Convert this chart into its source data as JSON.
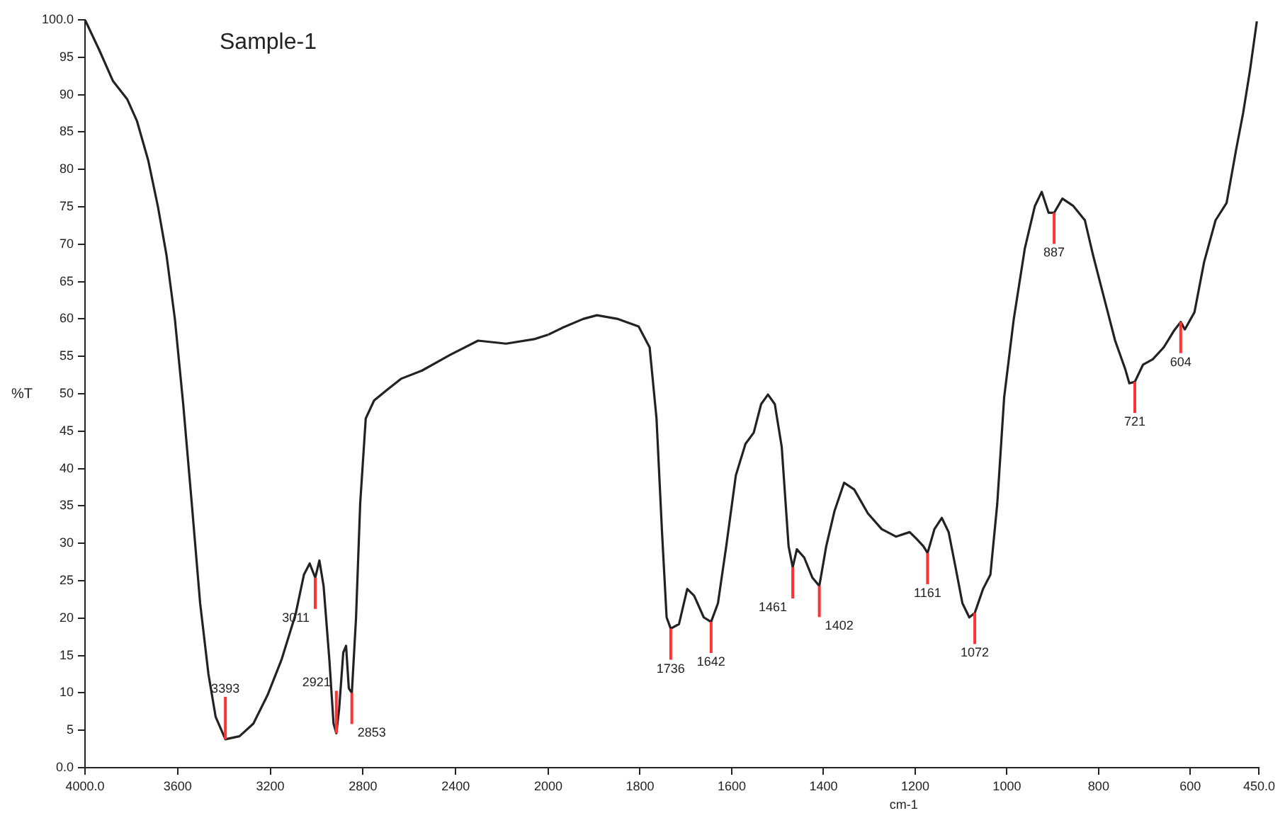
{
  "chart_data": [
    {
      "type": "line",
      "title": "Sample-1",
      "ylabel": "%T",
      "xlim": [
        4000,
        2000
      ],
      "ylim": [
        0,
        100
      ],
      "xticks": [
        {
          "value": 4000,
          "label": "4000.0"
        },
        3600,
        3200,
        2800,
        2400,
        2000
      ],
      "yticks": [
        {
          "value": 0,
          "label": "0.0"
        },
        5,
        10,
        15,
        20,
        25,
        30,
        35,
        40,
        45,
        50,
        55,
        60,
        65,
        70,
        75,
        80,
        85,
        90,
        95,
        {
          "value": 100,
          "label": "100.0"
        }
      ],
      "grid": false,
      "legend": false,
      "marker": "none",
      "line_style": "solid",
      "series": [
        {
          "color": "#222222",
          "x": [
            4000,
            3939,
            3879,
            3818,
            3776,
            3727,
            3685,
            3648,
            3612,
            3576,
            3539,
            3503,
            3467,
            3436,
            3394,
            3333,
            3273,
            3212,
            3152,
            3091,
            3055,
            3030,
            3006,
            2988,
            2970,
            2945,
            2927,
            2915,
            2903,
            2885,
            2873,
            2861,
            2848,
            2830,
            2812,
            2788,
            2752,
            2697,
            2636,
            2545,
            2424,
            2303,
            2182,
            2061,
            2000
          ],
          "values": [
            100,
            96,
            91.8,
            89.4,
            86.5,
            81.2,
            75,
            68.5,
            60,
            48.6,
            35.3,
            22,
            12.5,
            6.8,
            3.8,
            4.2,
            5.9,
            9.7,
            14.4,
            20.5,
            25.8,
            27.3,
            25.4,
            27.7,
            24.3,
            14.4,
            5.9,
            4.6,
            7.8,
            15.4,
            16.3,
            10.6,
            10,
            20,
            35.3,
            46.7,
            49.1,
            50.5,
            52,
            53.1,
            55.2,
            57.1,
            56.7,
            57.3,
            57.9
          ]
        }
      ],
      "annotations": [
        {
          "text": "3393",
          "x": 3394,
          "y": 3.8
        },
        {
          "text": "3011",
          "x": 3006,
          "y": 25.4
        },
        {
          "text": "2921",
          "x": 2915,
          "y": 4.6
        },
        {
          "text": "2853",
          "x": 2848,
          "y": 10
        }
      ]
    },
    {
      "type": "line",
      "xlabel": "cm-1",
      "xlim": [
        2000,
        450
      ],
      "ylim": [
        0,
        100
      ],
      "xticks": [
        1800,
        1600,
        1400,
        1200,
        1000,
        800,
        600,
        {
          "value": 450,
          "label": "450.0"
        }
      ],
      "tick_labels": "x",
      "grid": false,
      "legend": false,
      "marker": "none",
      "line_style": "solid",
      "series": [
        {
          "color": "#222222",
          "x": [
            2000,
            1970,
            1924,
            1894,
            1848,
            1803,
            1779,
            1764,
            1752,
            1742,
            1733,
            1715,
            1697,
            1682,
            1661,
            1645,
            1630,
            1612,
            1591,
            1570,
            1552,
            1536,
            1521,
            1506,
            1491,
            1476,
            1467,
            1458,
            1442,
            1424,
            1409,
            1394,
            1376,
            1355,
            1333,
            1303,
            1273,
            1242,
            1212,
            1197,
            1182,
            1173,
            1158,
            1142,
            1127,
            1112,
            1097,
            1082,
            1070,
            1052,
            1036,
            1021,
            1006,
            985,
            961,
            939,
            924,
            909,
            897,
            879,
            855,
            830,
            812,
            788,
            764,
            742,
            733,
            721,
            703,
            682,
            658,
            636,
            621,
            612,
            591,
            570,
            545,
            521,
            500,
            485,
            470,
            455
          ],
          "values": [
            57.9,
            58.8,
            60,
            60.5,
            60,
            59,
            56.2,
            46.7,
            31.5,
            20.1,
            18.6,
            19.2,
            23.9,
            23,
            20.1,
            19.5,
            22,
            29.6,
            39.1,
            43.3,
            44.8,
            48.6,
            49.9,
            48.6,
            42.9,
            29.6,
            26.8,
            29.2,
            28.1,
            25.4,
            24.3,
            29.6,
            34.3,
            38.1,
            37.2,
            34,
            31.9,
            30.9,
            31.5,
            30.6,
            29.6,
            28.7,
            31.9,
            33.4,
            31.5,
            26.8,
            22,
            20.1,
            20.7,
            23.9,
            25.8,
            35.3,
            49.5,
            60,
            69.4,
            75.1,
            77,
            74.2,
            74.2,
            76.1,
            75.1,
            73.2,
            68.5,
            62.8,
            57.1,
            53.3,
            51.4,
            51.6,
            53.9,
            54.6,
            56.2,
            58.4,
            59.6,
            58.6,
            60.9,
            67.6,
            73.2,
            75.5,
            82.7,
            87.5,
            93.2,
            99.8
          ]
        }
      ],
      "annotations": [
        {
          "text": "1736",
          "x": 1733,
          "y": 18.6
        },
        {
          "text": "1642",
          "x": 1645,
          "y": 19.5
        },
        {
          "text": "1461",
          "x": 1467,
          "y": 26.8
        },
        {
          "text": "1402",
          "x": 1409,
          "y": 24.3
        },
        {
          "text": "1161",
          "x": 1173,
          "y": 28.7
        },
        {
          "text": "1072",
          "x": 1070,
          "y": 20.7
        },
        {
          "text": "887",
          "x": 897,
          "y": 74.2
        },
        {
          "text": "721",
          "x": 721,
          "y": 51.6
        },
        {
          "text": "604",
          "x": 621,
          "y": 59.6
        }
      ]
    }
  ]
}
